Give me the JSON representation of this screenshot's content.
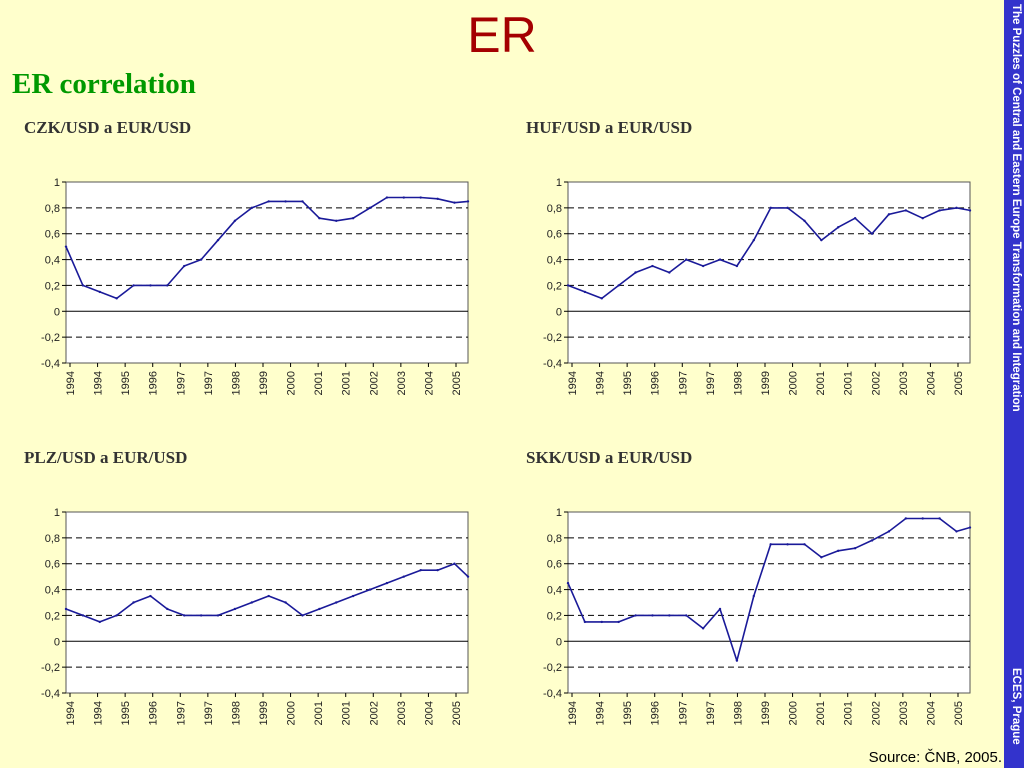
{
  "slide": {
    "title": "ER",
    "subtitle": "ER correlation",
    "sidebar_text": "The Puzzles of Central and Eastern Europe Transformation and Integration",
    "sidebar_footer": "ECES, Prague",
    "source": "Source: ČNB, 2005."
  },
  "colors": {
    "line": "#1a1a99",
    "title": "#a40000",
    "subtitle": "#009900",
    "sidebar": "#3333cc",
    "background": "#ffffcc"
  },
  "chart_data": [
    {
      "type": "line",
      "title": "CZK/USD a EUR/USD",
      "ylim": [
        -0.4,
        1
      ],
      "yticks": [
        "1",
        "0,8",
        "0,6",
        "0,4",
        "0,2",
        "0",
        "-0,2",
        "-0,4"
      ],
      "xticks": [
        "1994",
        "1994",
        "1995",
        "1996",
        "1997",
        "1997",
        "1998",
        "1999",
        "2000",
        "2001",
        "2001",
        "2002",
        "2003",
        "2004",
        "2005"
      ],
      "grid": "dashed-horizontal",
      "x": [
        1994.0,
        1994.5,
        1995.0,
        1995.5,
        1996.0,
        1996.5,
        1997.0,
        1997.5,
        1998.0,
        1998.5,
        1999.0,
        1999.5,
        2000.0,
        2000.5,
        2001.0,
        2001.5,
        2002.0,
        2002.5,
        2003.0,
        2003.5,
        2004.0,
        2004.5,
        2005.0,
        2005.5,
        2005.9
      ],
      "y": [
        0.5,
        0.2,
        0.15,
        0.1,
        0.2,
        0.2,
        0.2,
        0.35,
        0.4,
        0.55,
        0.7,
        0.8,
        0.85,
        0.85,
        0.85,
        0.72,
        0.7,
        0.72,
        0.8,
        0.88,
        0.88,
        0.88,
        0.87,
        0.84,
        0.85
      ]
    },
    {
      "type": "line",
      "title": "HUF/USD a EUR/USD",
      "ylim": [
        -0.4,
        1
      ],
      "yticks": [
        "1",
        "0,8",
        "0,6",
        "0,4",
        "0,2",
        "0",
        "-0,2",
        "-0,4"
      ],
      "xticks": [
        "1994",
        "1994",
        "1995",
        "1996",
        "1997",
        "1997",
        "1998",
        "1999",
        "2000",
        "2001",
        "2001",
        "2002",
        "2003",
        "2004",
        "2005"
      ],
      "grid": "dashed-horizontal",
      "x": [
        1994.0,
        1994.5,
        1995.0,
        1995.5,
        1996.0,
        1996.5,
        1997.0,
        1997.5,
        1998.0,
        1998.5,
        1999.0,
        1999.5,
        2000.0,
        2000.5,
        2001.0,
        2001.5,
        2002.0,
        2002.5,
        2003.0,
        2003.5,
        2004.0,
        2004.5,
        2005.0,
        2005.5,
        2005.9
      ],
      "y": [
        0.2,
        0.15,
        0.1,
        0.2,
        0.3,
        0.35,
        0.3,
        0.4,
        0.35,
        0.4,
        0.35,
        0.55,
        0.8,
        0.8,
        0.7,
        0.55,
        0.65,
        0.72,
        0.6,
        0.75,
        0.78,
        0.72,
        0.78,
        0.8,
        0.78
      ]
    },
    {
      "type": "line",
      "title": "PLZ/USD a EUR/USD",
      "ylim": [
        -0.4,
        1
      ],
      "yticks": [
        "1",
        "0,8",
        "0,6",
        "0,4",
        "0,2",
        "0",
        "-0,2",
        "-0,4"
      ],
      "xticks": [
        "1994",
        "1994",
        "1995",
        "1996",
        "1997",
        "1997",
        "1998",
        "1999",
        "2000",
        "2001",
        "2001",
        "2002",
        "2003",
        "2004",
        "2005"
      ],
      "grid": "dashed-horizontal",
      "x": [
        1994.0,
        1994.5,
        1995.0,
        1995.5,
        1996.0,
        1996.5,
        1997.0,
        1997.5,
        1998.0,
        1998.5,
        1999.0,
        1999.5,
        2000.0,
        2000.5,
        2001.0,
        2001.5,
        2002.0,
        2002.5,
        2003.0,
        2003.5,
        2004.0,
        2004.5,
        2005.0,
        2005.5,
        2005.9
      ],
      "y": [
        0.25,
        0.2,
        0.15,
        0.2,
        0.3,
        0.35,
        0.25,
        0.2,
        0.2,
        0.2,
        0.25,
        0.3,
        0.35,
        0.3,
        0.2,
        0.25,
        0.3,
        0.35,
        0.4,
        0.45,
        0.5,
        0.55,
        0.55,
        0.6,
        0.5
      ]
    },
    {
      "type": "line",
      "title": "SKK/USD a EUR/USD",
      "ylim": [
        -0.4,
        1
      ],
      "yticks": [
        "1",
        "0,8",
        "0,6",
        "0,4",
        "0,2",
        "0",
        "-0,2",
        "-0,4"
      ],
      "xticks": [
        "1994",
        "1994",
        "1995",
        "1996",
        "1997",
        "1997",
        "1998",
        "1999",
        "2000",
        "2001",
        "2001",
        "2002",
        "2003",
        "2004",
        "2005"
      ],
      "grid": "dashed-horizontal",
      "x": [
        1994.0,
        1994.5,
        1995.0,
        1995.5,
        1996.0,
        1996.5,
        1997.0,
        1997.5,
        1998.0,
        1998.5,
        1999.0,
        1999.5,
        2000.0,
        2000.5,
        2001.0,
        2001.5,
        2002.0,
        2002.5,
        2003.0,
        2003.5,
        2004.0,
        2004.5,
        2005.0,
        2005.5,
        2005.9
      ],
      "y": [
        0.45,
        0.15,
        0.15,
        0.15,
        0.2,
        0.2,
        0.2,
        0.2,
        0.1,
        0.25,
        -0.15,
        0.35,
        0.75,
        0.75,
        0.75,
        0.65,
        0.7,
        0.72,
        0.78,
        0.85,
        0.95,
        0.95,
        0.95,
        0.85,
        0.88
      ]
    }
  ]
}
